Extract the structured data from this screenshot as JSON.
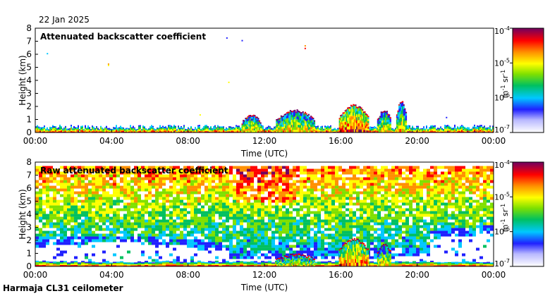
{
  "date": "22 Jan 2025",
  "instrument": "Harmaja CL31 ceilometer",
  "chart_data": [
    {
      "type": "heatmap",
      "title": "Attenuated backscatter coefficient",
      "xlabel": "Time (UTC)",
      "ylabel": "Height (km)",
      "x_ticks": [
        "00:00",
        "04:00",
        "08:00",
        "12:00",
        "16:00",
        "20:00",
        "00:00"
      ],
      "y_ticks": [
        "0",
        "1",
        "2",
        "3",
        "4",
        "5",
        "6",
        "7",
        "8"
      ],
      "ylim": [
        0,
        8
      ],
      "xlim_hours": [
        0,
        24
      ],
      "colorbar": {
        "scale": "log",
        "ticks": [
          "10-4",
          "10-5",
          "10-6",
          "10-7"
        ],
        "label_parts": [
          "m",
          "-1",
          " sr",
          "-1"
        ]
      },
      "signal_regions": [
        {
          "t_start": 0,
          "t_end": 24,
          "h_top": 0.5,
          "intensity": "strong"
        },
        {
          "t_start": 10.8,
          "t_end": 11.8,
          "h_top": 1.2,
          "intensity": "medium"
        },
        {
          "t_start": 12.6,
          "t_end": 14.6,
          "h_top": 1.6,
          "intensity": "medium"
        },
        {
          "t_start": 15.9,
          "t_end": 17.4,
          "h_top": 2.0,
          "intensity": "strong"
        },
        {
          "t_start": 17.9,
          "t_end": 18.6,
          "h_top": 1.6,
          "intensity": "medium"
        },
        {
          "t_start": 18.9,
          "t_end": 19.4,
          "h_top": 2.3,
          "intensity": "medium"
        }
      ]
    },
    {
      "type": "heatmap",
      "title": "Raw attenuated backscatter coefficient",
      "xlabel": "Time (UTC)",
      "ylabel": "Height (km)",
      "x_ticks": [
        "00:00",
        "04:00",
        "08:00",
        "12:00",
        "16:00",
        "20:00",
        "00:00"
      ],
      "y_ticks": [
        "0",
        "1",
        "2",
        "3",
        "4",
        "5",
        "6",
        "7",
        "8"
      ],
      "ylim": [
        0,
        8
      ],
      "xlim_hours": [
        0,
        24
      ],
      "colorbar": {
        "scale": "log",
        "ticks": [
          "10-4",
          "10-5",
          "10-6",
          "10-7"
        ],
        "label_parts": [
          "m",
          "-1",
          " sr",
          "-1"
        ]
      },
      "noise_top_km": 7.7,
      "signal_regions": [
        {
          "t_start": 0,
          "t_end": 24,
          "h_top": 0.4,
          "intensity": "strong"
        },
        {
          "t_start": 12.6,
          "t_end": 14.6,
          "h_top": 0.8,
          "intensity": "medium"
        },
        {
          "t_start": 15.9,
          "t_end": 17.4,
          "h_top": 2.0,
          "intensity": "strong"
        },
        {
          "t_start": 17.9,
          "t_end": 18.6,
          "h_top": 1.6,
          "intensity": "medium"
        }
      ]
    }
  ]
}
